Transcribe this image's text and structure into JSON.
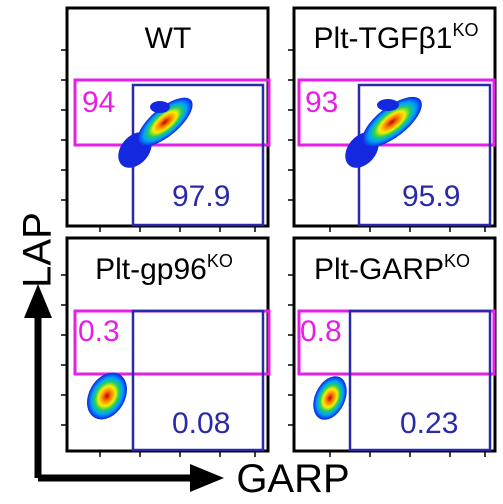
{
  "axes": {
    "y_label": "LAP",
    "x_label": "GARP"
  },
  "colors": {
    "lap_gate": "#e61ee6",
    "garp_gate": "#2a2aa8",
    "frame": "#000000"
  },
  "panels": [
    {
      "title_main": "WT",
      "title_sup": "",
      "lap_gate_value": "94",
      "garp_gate_value": "97.9"
    },
    {
      "title_main": "Plt-TGFβ1",
      "title_sup": "KO",
      "lap_gate_value": "93",
      "garp_gate_value": "95.9"
    },
    {
      "title_main": "Plt-gp96",
      "title_sup": "KO",
      "lap_gate_value": "0.3",
      "garp_gate_value": "0.08"
    },
    {
      "title_main": "Plt-GARP",
      "title_sup": "KO",
      "lap_gate_value": "0.8",
      "garp_gate_value": "0.23"
    }
  ]
}
